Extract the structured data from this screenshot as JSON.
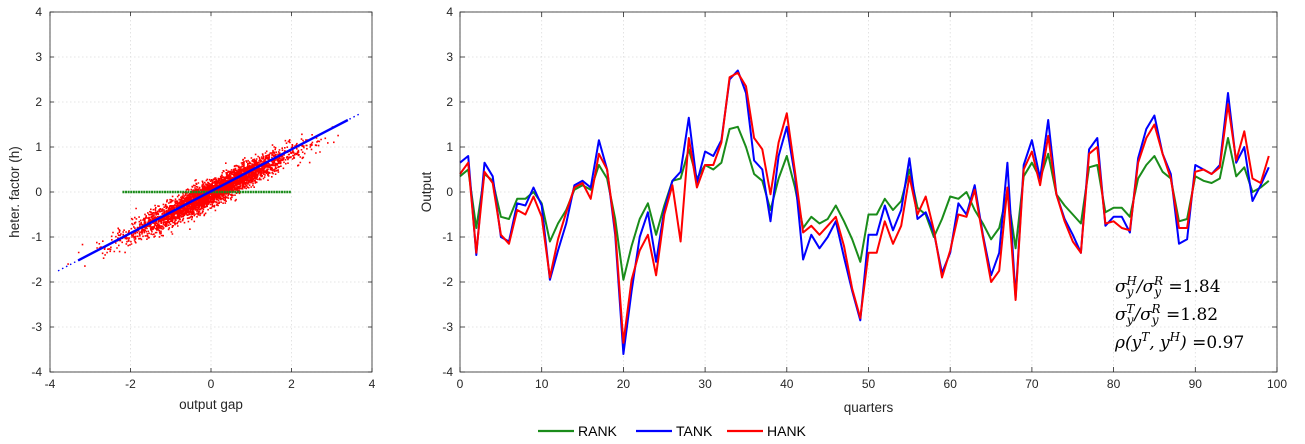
{
  "chart_data": [
    {
      "type": "scatter",
      "xlabel": "output gap",
      "ylabel": "heter. factor (h)",
      "xlim": [
        -4,
        4
      ],
      "ylim": [
        -4,
        4
      ],
      "xticks": [
        -4,
        -2,
        0,
        2,
        4
      ],
      "yticks": [
        -4,
        -3,
        -2,
        -1,
        0,
        1,
        2,
        3,
        4
      ],
      "grid": true,
      "scatter_cloud": {
        "color": "#ff0000",
        "x_range": [
          -3.8,
          3.5
        ],
        "slope": 0.45,
        "spread_sd": 0.14
      },
      "flat_series": {
        "color": "#1a8c1a",
        "x_range": [
          -2.2,
          2.0
        ],
        "y": 0
      },
      "fit_line": {
        "color": "#0000ff",
        "x": [
          -3.3,
          3.4
        ],
        "y": [
          -1.52,
          1.6
        ],
        "dotted_extension_x": [
          -3.8,
          3.7
        ]
      }
    },
    {
      "type": "line",
      "xlabel": "quarters",
      "ylabel": "Output",
      "xlim": [
        0,
        100
      ],
      "ylim": [
        -4,
        4
      ],
      "xticks": [
        0,
        10,
        20,
        30,
        40,
        50,
        60,
        70,
        80,
        90,
        100
      ],
      "yticks": [
        -4,
        -3,
        -2,
        -1,
        0,
        1,
        2,
        3,
        4
      ],
      "grid": true,
      "legend_position": "bottom-center",
      "series": [
        {
          "name": "RANK",
          "color": "#1a8c1a",
          "values": [
            0.35,
            0.5,
            -0.8,
            0.4,
            0.25,
            -0.55,
            -0.6,
            -0.15,
            -0.15,
            0.0,
            -0.25,
            -1.1,
            -0.7,
            -0.4,
            0.05,
            0.15,
            0.05,
            0.6,
            0.3,
            -0.6,
            -1.95,
            -1.2,
            -0.6,
            -0.25,
            -0.95,
            -0.3,
            0.25,
            0.3,
            0.95,
            0.3,
            0.6,
            0.5,
            0.65,
            1.4,
            1.45,
            1.0,
            0.4,
            0.25,
            -0.4,
            0.3,
            0.8,
            0.1,
            -0.8,
            -0.55,
            -0.7,
            -0.6,
            -0.3,
            -0.65,
            -1.05,
            -1.55,
            -0.5,
            -0.5,
            -0.15,
            -0.4,
            -0.2,
            0.5,
            -0.35,
            -0.5,
            -1.0,
            -0.6,
            -0.1,
            -0.15,
            0.0,
            -0.4,
            -0.7,
            -1.05,
            -0.8,
            0.0,
            -1.25,
            0.35,
            0.65,
            0.3,
            0.85,
            -0.05,
            -0.3,
            -0.5,
            -0.7,
            0.55,
            0.6,
            -0.45,
            -0.35,
            -0.35,
            -0.55,
            0.3,
            0.6,
            0.8,
            0.45,
            0.3,
            -0.65,
            -0.6,
            0.35,
            0.25,
            0.2,
            0.3,
            1.2,
            0.35,
            0.55,
            0.0,
            0.1,
            0.25
          ]
        },
        {
          "name": "TANK",
          "color": "#0000ff",
          "values": [
            0.65,
            0.8,
            -1.4,
            0.65,
            0.35,
            -1.0,
            -1.1,
            -0.25,
            -0.3,
            0.1,
            -0.3,
            -1.95,
            -1.3,
            -0.7,
            0.15,
            0.25,
            0.1,
            1.15,
            0.5,
            -0.95,
            -3.6,
            -2.2,
            -1.0,
            -0.45,
            -1.55,
            -0.4,
            0.25,
            0.45,
            1.65,
            0.2,
            0.9,
            0.8,
            1.15,
            2.5,
            2.7,
            2.2,
            0.7,
            0.5,
            -0.65,
            0.8,
            1.45,
            0.35,
            -1.5,
            -0.95,
            -1.25,
            -1.0,
            -0.65,
            -1.45,
            -2.2,
            -2.85,
            -0.95,
            -0.95,
            -0.3,
            -0.85,
            -0.4,
            0.75,
            -0.6,
            -0.45,
            -0.9,
            -1.8,
            -1.35,
            -0.25,
            -0.5,
            0.15,
            -0.95,
            -1.85,
            -1.35,
            0.65,
            -2.35,
            0.6,
            1.15,
            0.3,
            1.6,
            -0.05,
            -0.6,
            -0.95,
            -1.35,
            0.95,
            1.2,
            -0.75,
            -0.55,
            -0.55,
            -0.9,
            0.75,
            1.4,
            1.7,
            0.85,
            0.4,
            -1.15,
            -1.05,
            0.6,
            0.5,
            0.4,
            0.6,
            2.2,
            0.65,
            1.0,
            -0.2,
            0.15,
            0.55
          ]
        },
        {
          "name": "HANK",
          "color": "#ff0000",
          "values": [
            0.4,
            0.65,
            -1.35,
            0.45,
            0.2,
            -0.95,
            -1.15,
            -0.4,
            -0.5,
            -0.1,
            -0.55,
            -1.9,
            -1.05,
            -0.45,
            0.1,
            0.2,
            -0.15,
            0.85,
            0.5,
            -0.85,
            -3.35,
            -1.95,
            -1.3,
            -0.95,
            -1.85,
            -0.5,
            0.15,
            -1.1,
            1.2,
            0.1,
            0.6,
            0.6,
            1.1,
            2.55,
            2.65,
            2.35,
            1.2,
            0.95,
            -0.05,
            1.1,
            1.75,
            0.45,
            -0.9,
            -0.75,
            -0.95,
            -0.75,
            -0.55,
            -1.2,
            -2.15,
            -2.8,
            -1.35,
            -1.35,
            -0.65,
            -1.15,
            -0.75,
            0.35,
            -0.5,
            -0.1,
            -0.85,
            -1.9,
            -1.3,
            -0.5,
            -0.55,
            0.05,
            -1.0,
            -2.0,
            -1.75,
            0.1,
            -2.4,
            0.5,
            0.9,
            0.15,
            1.25,
            -0.05,
            -0.65,
            -1.1,
            -1.35,
            0.85,
            1.0,
            -0.7,
            -0.65,
            -0.8,
            -0.85,
            0.65,
            1.2,
            1.5,
            0.85,
            0.3,
            -0.8,
            -0.8,
            0.45,
            0.5,
            0.4,
            0.55,
            1.95,
            0.7,
            1.35,
            0.3,
            0.2,
            0.8
          ]
        }
      ],
      "annotations": [
        {
          "text": "σyH/σyR =1.84"
        },
        {
          "text": "σyT/σyR =1.82"
        },
        {
          "text": "ρ(yT, yH) =0.97"
        }
      ]
    }
  ]
}
